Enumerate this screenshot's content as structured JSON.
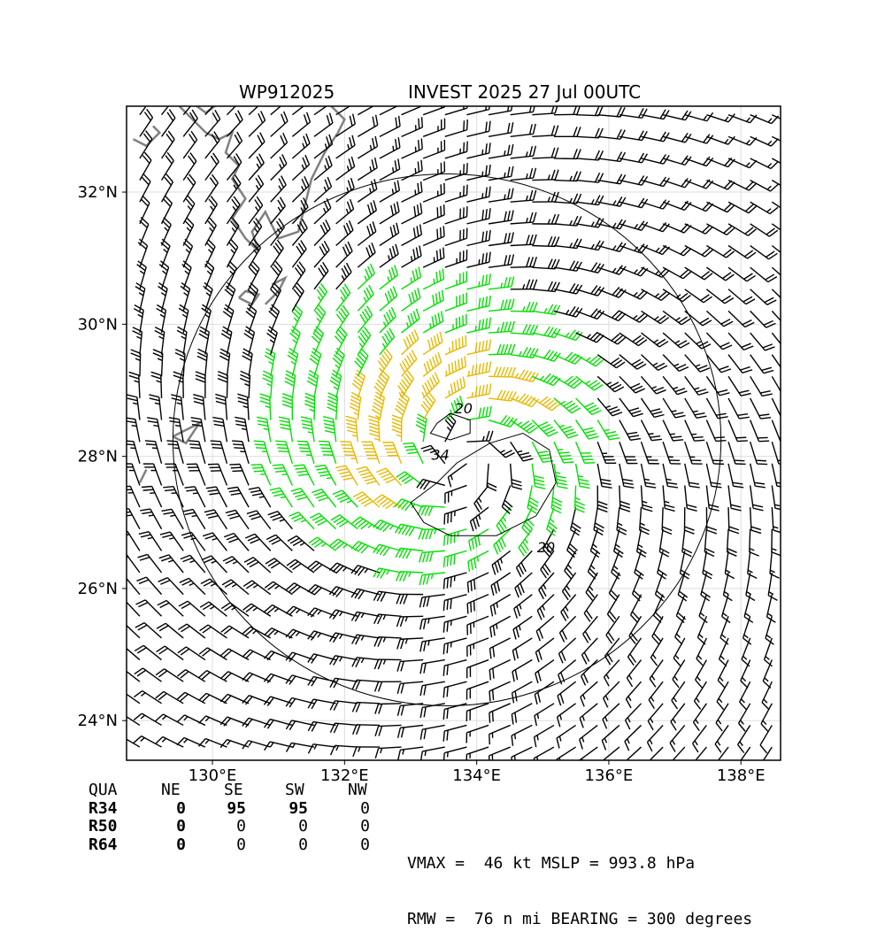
{
  "header": {
    "storm_id": "WP912025",
    "storm_info": "INVEST 2025 27 Jul 00UTC"
  },
  "chart_data": {
    "type": "wind-barb-map",
    "lon_range": [
      128.7,
      138.6
    ],
    "lat_range": [
      23.4,
      33.3
    ],
    "x_ticks": [
      "130°E",
      "132°E",
      "134°E",
      "136°E",
      "138°E"
    ],
    "y_ticks": [
      "24°N",
      "26°N",
      "28°N",
      "30°N",
      "32°N"
    ],
    "grid": true,
    "center": {
      "lon": 133.8,
      "lat": 28.0
    },
    "contours": [
      {
        "label": "20"
      },
      {
        "label": "34"
      },
      {
        "label": "20"
      }
    ],
    "wind_colors": {
      "below_34": "#000000",
      "gale_34_plus": "#00e000",
      "storm_50_plus": "#e8b800"
    },
    "coastline_color": "#808080"
  },
  "quadrant_table": {
    "headers": [
      "QUA",
      "NE",
      "SE",
      "SW",
      "NW"
    ],
    "rows": [
      {
        "label": "R34",
        "values": [
          "0",
          "95",
          "95",
          "0"
        ]
      },
      {
        "label": "R50",
        "values": [
          "0",
          "0",
          "0",
          "0"
        ]
      },
      {
        "label": "R64",
        "values": [
          "0",
          "0",
          "0",
          "0"
        ]
      }
    ]
  },
  "stats": {
    "line1": "VMAX =  46 kt MSLP = 993.8 hPa",
    "line2": "RMW =  76 n mi BEARING = 300 degrees"
  }
}
